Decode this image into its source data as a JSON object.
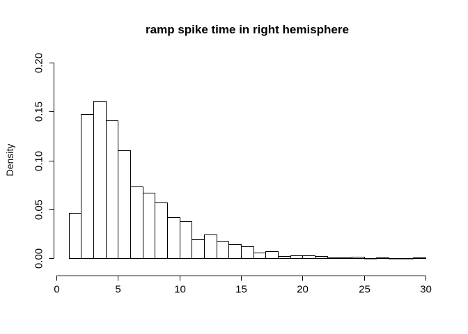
{
  "chart_data": {
    "type": "bar",
    "title": "ramp spike time in right hemisphere",
    "xlabel": "",
    "ylabel": "Density",
    "xlim": [
      0,
      30
    ],
    "ylim": [
      0,
      0.2
    ],
    "grid": false,
    "x_ticks": [
      0,
      5,
      10,
      15,
      20,
      25,
      30
    ],
    "x_tick_labels": [
      "0",
      "5",
      "10",
      "15",
      "20",
      "25",
      "30"
    ],
    "y_ticks": [
      0,
      0.05,
      0.1,
      0.15,
      0.2
    ],
    "y_tick_labels": [
      "0.00",
      "0.05",
      "0.10",
      "0.15",
      "0.20"
    ],
    "bin_width": 1,
    "bin_edges_start": [
      1,
      2,
      3,
      4,
      5,
      6,
      7,
      8,
      9,
      10,
      11,
      12,
      13,
      14,
      15,
      16,
      17,
      18,
      19,
      20,
      21,
      22,
      23,
      24,
      25,
      26,
      27,
      28,
      29
    ],
    "values": [
      0.046,
      0.147,
      0.161,
      0.141,
      0.11,
      0.073,
      0.067,
      0.057,
      0.042,
      0.038,
      0.019,
      0.024,
      0.017,
      0.014,
      0.012,
      0.006,
      0.007,
      0.002,
      0.003,
      0.003,
      0.002,
      0.001,
      0.001,
      0.0015,
      0.0003,
      0.001,
      0.0003,
      0.0002,
      0.001
    ]
  }
}
